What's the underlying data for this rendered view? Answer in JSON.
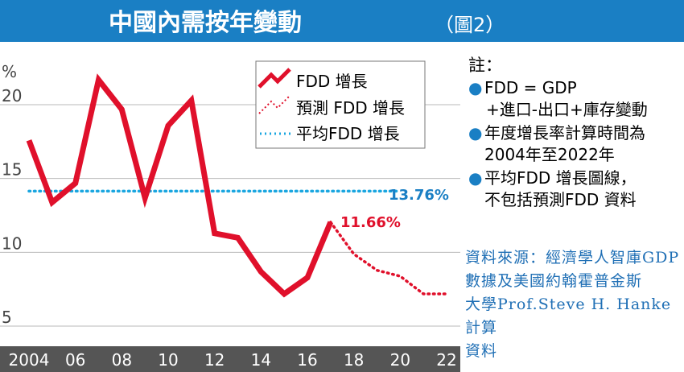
{
  "title": "中國內需按年變動",
  "title_suffix": "（圖2）",
  "unit_label": "%",
  "legend": {
    "actual": "FDD 增長",
    "forecast": "預測 FDD 增長",
    "average": "平均FDD 增長"
  },
  "labels": {
    "average_value": "13.76%",
    "last_actual": "11.66%"
  },
  "notes": {
    "heading": "註：",
    "items": [
      {
        "main": "FDD = GDP",
        "sub": "+進口-出口+庫存變動"
      },
      {
        "main": "年度增長率計算時間為",
        "sub": "2004年至2022年"
      },
      {
        "main": "平均FDD 增長圖線，",
        "sub": "不包括預測FDD 資料"
      }
    ]
  },
  "source": {
    "line1": "資料來源：經濟學人智庫GDP",
    "line2": "數據及美國約翰霍普金斯",
    "line3": "大學Prof.Steve H. Hanke計算",
    "line4": "資料"
  },
  "colors": {
    "title_bar": "#1a7fc4",
    "actual": "#e0102b",
    "forecast": "#e0102b",
    "average": "#1aa6e0",
    "average_label": "#1a7fc4",
    "axis_bar": "#555555",
    "grid": "#b9b9b9"
  },
  "chart_data": {
    "type": "line",
    "title": "中國內需按年變動",
    "ylabel": "%",
    "x_ticks": [
      "2004",
      "06",
      "08",
      "10",
      "12",
      "14",
      "16",
      "18",
      "20",
      "22"
    ],
    "x_tick_values": [
      2004,
      2006,
      2008,
      2010,
      2012,
      2014,
      2016,
      2018,
      2020,
      2022
    ],
    "y_ticks": [
      5,
      10,
      15,
      20
    ],
    "xlim": [
      2003.5,
      2022.5
    ],
    "ylim": [
      3.5,
      22.5
    ],
    "grid": true,
    "legend_position": "top-center",
    "series": [
      {
        "name": "FDD 增長",
        "style": "solid",
        "x": [
          2004,
          2005,
          2006,
          2007,
          2008,
          2009,
          2010,
          2011,
          2012,
          2013,
          2014,
          2015,
          2016,
          2017
        ],
        "values": [
          17.2,
          13.0,
          14.3,
          21.3,
          19.3,
          13.3,
          18.2,
          19.9,
          10.9,
          10.6,
          8.3,
          6.8,
          7.9,
          11.66
        ]
      },
      {
        "name": "預測 FDD 增長",
        "style": "dotted",
        "x": [
          2017,
          2018,
          2019,
          2020,
          2021,
          2022
        ],
        "values": [
          11.66,
          9.5,
          8.4,
          8.0,
          6.8,
          6.8
        ]
      },
      {
        "name": "平均FDD 增長",
        "style": "dotted",
        "x": [
          2004,
          2020
        ],
        "values": [
          13.76,
          13.76
        ]
      }
    ]
  }
}
